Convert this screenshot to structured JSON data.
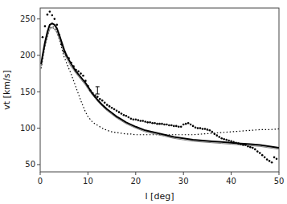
{
  "chart_data": {
    "type": "line",
    "x_label": "l [deg]",
    "y_label": "vt [km/s]",
    "xlim": [
      0,
      50
    ],
    "ylim": [
      40,
      265
    ],
    "xticks": [
      0,
      10,
      20,
      30,
      40,
      50
    ],
    "yticks": [
      50,
      100,
      150,
      200,
      250
    ],
    "grid": false,
    "series": [
      {
        "type": "line",
        "color": "black",
        "line_style": "dotted",
        "x": [
          0.2,
          0.5,
          1.0,
          1.5,
          2.0,
          2.5,
          3.0,
          3.5,
          4.0,
          4.5,
          5.0,
          5.5,
          6.0,
          6.5,
          7.0,
          7.5,
          8.0,
          8.5,
          9.0,
          9.5,
          10.0,
          10.5,
          11.0,
          11.5,
          12.0,
          13.0,
          14.0,
          15.0,
          16.0,
          17.0,
          18.0,
          19.0,
          20.0,
          22.0,
          24.0,
          26.0,
          28.0,
          30.0,
          32.0,
          34.0,
          36.0,
          38.0,
          40.0,
          42.0,
          44.0,
          46.0,
          48.0,
          50.0
        ],
        "values": [
          182,
          194,
          212,
          226,
          237,
          240,
          238,
          232,
          222,
          210,
          198,
          190,
          182,
          174,
          165,
          156,
          147,
          138,
          130,
          122,
          116,
          112,
          108,
          106,
          104,
          100,
          97,
          95,
          94,
          93,
          92,
          92,
          91,
          91,
          91,
          91,
          91,
          91,
          91,
          92,
          93,
          94,
          95,
          96,
          97,
          98,
          98,
          99
        ]
      },
      {
        "type": "line",
        "color": "gray",
        "line_style": "solid",
        "x": [
          0.2,
          0.5,
          1.0,
          1.5,
          2.0,
          2.5,
          3.0,
          3.5,
          4.0,
          4.5,
          5.0,
          5.5,
          6.0,
          6.5,
          7.0,
          7.5,
          8.0,
          8.5,
          9.0,
          9.5,
          10.0,
          10.5,
          11.0,
          11.5,
          12.0,
          13.0,
          14.0,
          15.0,
          16.0,
          17.0,
          18.0,
          19.0,
          20.0,
          22.0,
          24.0,
          26.0,
          28.0,
          30.0,
          32.0,
          34.0,
          36.0,
          38.0,
          40.0,
          42.0,
          44.0,
          46.0,
          48.0,
          50.0
        ],
        "values": [
          185,
          196,
          213,
          226,
          236,
          238,
          236,
          231,
          223,
          213,
          204,
          196,
          190,
          184,
          180,
          175,
          171,
          167,
          163,
          159,
          154,
          149,
          145,
          141,
          137,
          130,
          124,
          119,
          114,
          110,
          106,
          103,
          100,
          95,
          92,
          89,
          86,
          84,
          82,
          81,
          80,
          79,
          78,
          77,
          76,
          75,
          73,
          71
        ]
      },
      {
        "type": "line",
        "color": "black",
        "line_style": "solid",
        "x": [
          0.2,
          0.5,
          1.0,
          1.5,
          2.0,
          2.5,
          3.0,
          3.5,
          4.0,
          4.5,
          5.0,
          5.5,
          6.0,
          6.5,
          7.0,
          7.5,
          8.0,
          8.5,
          9.0,
          9.5,
          10.0,
          10.5,
          11.0,
          11.5,
          12.0,
          13.0,
          14.0,
          15.0,
          16.0,
          17.0,
          18.0,
          19.0,
          20.0,
          22.0,
          24.0,
          26.0,
          28.0,
          30.0,
          32.0,
          34.0,
          36.0,
          38.0,
          40.0,
          42.0,
          44.0,
          46.0,
          48.0,
          50.0
        ],
        "values": [
          188,
          200,
          218,
          232,
          242,
          244,
          242,
          237,
          228,
          218,
          208,
          200,
          194,
          188,
          183,
          178,
          174,
          170,
          166,
          162,
          157,
          152,
          147,
          143,
          139,
          132,
          126,
          121,
          116,
          112,
          108,
          105,
          102,
          97,
          94,
          91,
          88,
          86,
          84,
          83,
          82,
          81,
          80,
          79,
          78,
          77,
          75,
          73
        ]
      },
      {
        "type": "scatter",
        "color": "black",
        "marker": "dot",
        "x": [
          0.5,
          1.0,
          1.5,
          2.0,
          2.5,
          3.0,
          3.5,
          4.0,
          4.5,
          5.0,
          5.5,
          6.0,
          6.5,
          7.0,
          7.5,
          8.0,
          8.5,
          9.0,
          9.5,
          10.0,
          10.5,
          11.0,
          11.5,
          12.0,
          12.5,
          13.0,
          13.5,
          14.0,
          14.5,
          15.0,
          15.5,
          16.0,
          16.5,
          17.0,
          17.5,
          18.0,
          18.5,
          19.0,
          19.5,
          20.0,
          20.5,
          21.0,
          21.5,
          22.0,
          22.5,
          23.0,
          23.5,
          24.0,
          24.5,
          25.0,
          25.5,
          26.0,
          26.5,
          27.0,
          27.5,
          28.0,
          28.5,
          29.0,
          29.5,
          30.0,
          30.5,
          31.0,
          31.5,
          32.0,
          32.5,
          33.0,
          33.5,
          34.0,
          34.5,
          35.0,
          35.5,
          36.0,
          36.5,
          37.0,
          37.5,
          38.0,
          38.5,
          39.0,
          39.5,
          40.0,
          40.5,
          41.0,
          41.5,
          42.0,
          42.5,
          43.0,
          43.5,
          44.0,
          44.5,
          45.0,
          45.5,
          46.0,
          46.5,
          47.0,
          47.5,
          48.0,
          48.5,
          49.0,
          49.5
        ],
        "values": [
          225,
          240,
          256,
          260,
          255,
          250,
          242,
          228,
          215,
          205,
          200,
          196,
          190,
          185,
          180,
          178,
          175,
          172,
          165,
          158,
          152,
          148,
          145,
          143,
          140,
          138,
          135,
          132,
          130,
          128,
          126,
          124,
          122,
          120,
          118,
          117,
          115,
          113,
          112,
          112,
          111,
          110,
          110,
          109,
          108,
          108,
          107,
          107,
          106,
          106,
          106,
          105,
          105,
          104,
          104,
          103,
          103,
          102,
          102,
          105,
          106,
          107,
          105,
          103,
          101,
          100,
          100,
          99,
          99,
          98,
          97,
          95,
          92,
          90,
          88,
          86,
          85,
          84,
          83,
          82,
          81,
          80,
          79,
          78,
          77,
          77,
          75,
          74,
          73,
          71,
          68,
          66,
          63,
          60,
          57,
          55,
          53,
          60,
          58
        ]
      },
      {
        "type": "errorbar",
        "color": "black",
        "x": [
          12.0
        ],
        "values": [
          152
        ],
        "errors": [
          5
        ]
      }
    ]
  }
}
